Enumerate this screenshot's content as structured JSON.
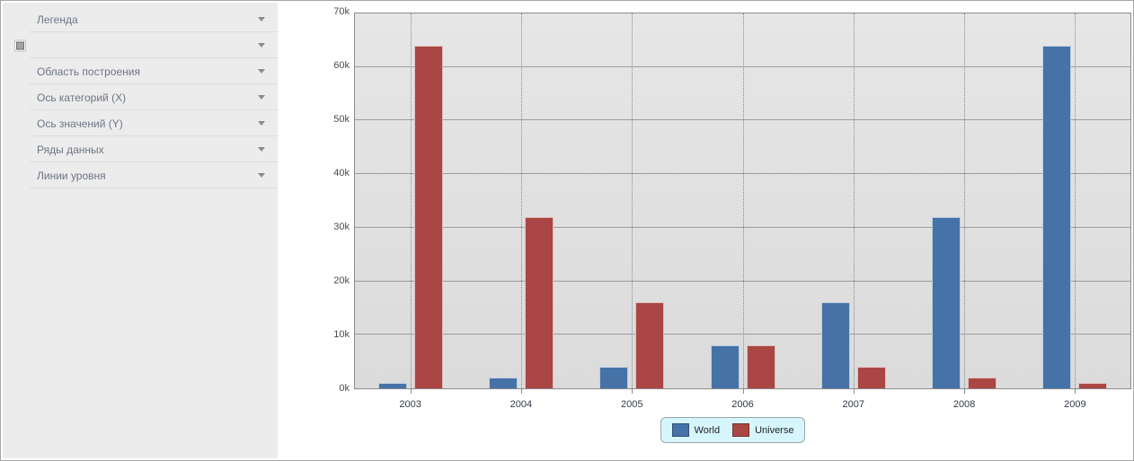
{
  "sidebar": {
    "items": [
      {
        "id": "legend",
        "label": "Легенда",
        "has_icon": false
      },
      {
        "id": "chart",
        "label": "",
        "has_icon": true
      },
      {
        "id": "plot-area",
        "label": "Область построения",
        "has_icon": false
      },
      {
        "id": "category-axis-x",
        "label": "Ось категорий (X)",
        "has_icon": false
      },
      {
        "id": "value-axis-y",
        "label": "Ось значений (Y)",
        "has_icon": false
      },
      {
        "id": "data-series",
        "label": "Ряды данных",
        "has_icon": false
      },
      {
        "id": "level-lines",
        "label": "Линии уровня",
        "has_icon": false
      }
    ],
    "chevron_icon": "chevron-down-icon",
    "marker_icon": "square-marker-icon"
  },
  "chart_data": {
    "type": "bar",
    "title": "",
    "xlabel": "",
    "ylabel": "",
    "categories": [
      "2003",
      "2004",
      "2005",
      "2006",
      "2007",
      "2008",
      "2009"
    ],
    "series": [
      {
        "name": "World",
        "color": "#4572a7",
        "values": [
          1000,
          2000,
          4000,
          8000,
          16000,
          32000,
          64000
        ]
      },
      {
        "name": "Universe",
        "color": "#aa4643",
        "values": [
          64000,
          32000,
          16000,
          8000,
          4000,
          2000,
          1000
        ]
      }
    ],
    "ylim": [
      0,
      70000
    ],
    "ytick_interval": 10000,
    "ytick_labels": [
      "0k",
      "10k",
      "20k",
      "30k",
      "40k",
      "50k",
      "60k",
      "70k"
    ],
    "grid": {
      "horizontal": "solid",
      "vertical": "dotted-at-category-centers"
    },
    "legend_position": "bottom-center",
    "colors": {
      "plot_background": "#e0e0e0",
      "grid_line": "#9d9d9d",
      "axis_border": "#8c8c8c",
      "legend_background": "#d6f6fd",
      "legend_border": "#95a7ab"
    }
  }
}
